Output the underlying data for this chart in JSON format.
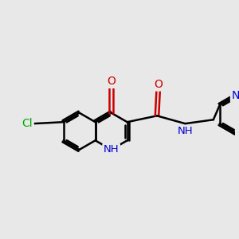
{
  "bg_color": "#e8e8e8",
  "bond_color": "#000000",
  "bond_width": 1.8,
  "atom_colors": {
    "N": "#0000cc",
    "O": "#cc0000",
    "Cl": "#00aa00",
    "C": "#000000"
  },
  "font_size_atom": 10,
  "figsize": [
    3.0,
    3.0
  ],
  "dpi": 100
}
